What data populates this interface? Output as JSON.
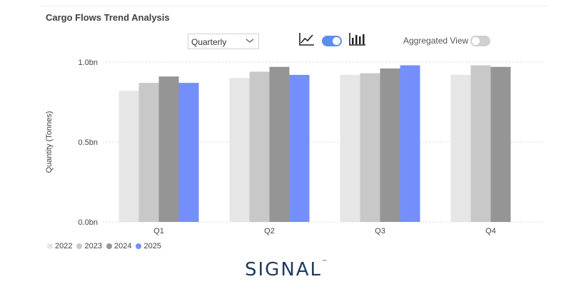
{
  "header": {
    "title": "Cargo Flows Trend Analysis"
  },
  "controls": {
    "period_select": {
      "value": "Quarterly"
    },
    "line_icon": "line-chart-icon",
    "bar_icon": "bar-chart-icon",
    "chart_type_toggle_on": true,
    "aggregated_label": "Aggregated View",
    "aggregated_toggle_on": false
  },
  "colors": {
    "accent": "#5b8def",
    "s2022": "#e6e6e6",
    "s2023": "#c8c8c8",
    "s2024": "#959595",
    "s2025": "#748ffc"
  },
  "chart_data": {
    "type": "bar",
    "title": "",
    "xlabel": "",
    "ylabel": "Quantity (Tonnes)",
    "ylim": [
      0,
      1.0
    ],
    "yticks": [
      "0.0bn",
      "0.5bn",
      "1.0bn"
    ],
    "grid": true,
    "legend": "bottom-left",
    "categories": [
      "Q1",
      "Q2",
      "Q3",
      "Q4"
    ],
    "series": [
      {
        "name": "2022",
        "color": "#e6e6e6",
        "values": [
          0.82,
          0.9,
          0.92,
          0.92
        ]
      },
      {
        "name": "2023",
        "color": "#c8c8c8",
        "values": [
          0.87,
          0.94,
          0.93,
          0.98
        ]
      },
      {
        "name": "2024",
        "color": "#959595",
        "values": [
          0.91,
          0.97,
          0.96,
          0.97
        ]
      },
      {
        "name": "2025",
        "color": "#748ffc",
        "values": [
          0.87,
          0.92,
          0.98,
          null
        ]
      }
    ]
  },
  "footer": {
    "brand": "SIGNAL",
    "brand_mark": "™"
  }
}
